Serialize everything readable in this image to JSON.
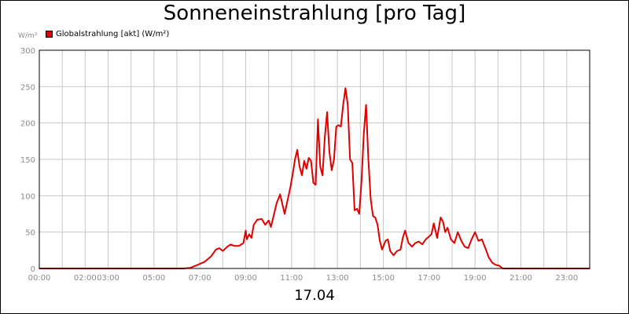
{
  "title": "Sonneneinstrahlung [pro Tag]",
  "y_unit": "W/m²",
  "date_label": "17.04",
  "colors": {
    "series": "#e00000",
    "grid": "#c8c8c8",
    "axis": "#000000",
    "tick_text": "#8a8a8a"
  },
  "chart_data": {
    "type": "line",
    "title": "Sonneneinstrahlung [pro Tag]",
    "xlabel": "17.04",
    "ylabel": "W/m²",
    "ylim": [
      0,
      300
    ],
    "xlim_hours": [
      0,
      24
    ],
    "grid": true,
    "legend_placement": "top-left",
    "y_ticks": [
      "0",
      "50",
      "100",
      "150",
      "200",
      "250",
      "300"
    ],
    "x_ticks": [
      "00:00",
      "02:00",
      "03:00",
      "05:00",
      "07:00",
      "09:00",
      "11:00",
      "13:00",
      "15:00",
      "17:00",
      "19:00",
      "21:00",
      "23:00"
    ],
    "series": [
      {
        "name": "Globalstrahlung [akt] (W/m²)",
        "color": "#e00000",
        "x": [
          0,
          6.3,
          6.6,
          6.9,
          7.2,
          7.5,
          7.7,
          7.85,
          8.0,
          8.2,
          8.35,
          8.5,
          8.7,
          8.9,
          9.0,
          9.05,
          9.15,
          9.25,
          9.35,
          9.5,
          9.7,
          9.85,
          10.0,
          10.1,
          10.2,
          10.35,
          10.5,
          10.6,
          10.7,
          10.8,
          10.95,
          11.05,
          11.15,
          11.25,
          11.35,
          11.45,
          11.55,
          11.65,
          11.75,
          11.85,
          11.95,
          12.05,
          12.15,
          12.25,
          12.35,
          12.45,
          12.55,
          12.65,
          12.75,
          12.85,
          12.95,
          13.05,
          13.15,
          13.25,
          13.35,
          13.45,
          13.55,
          13.65,
          13.75,
          13.85,
          13.95,
          14.05,
          14.15,
          14.25,
          14.35,
          14.45,
          14.55,
          14.65,
          14.75,
          14.85,
          14.95,
          15.1,
          15.2,
          15.3,
          15.45,
          15.6,
          15.75,
          15.85,
          15.95,
          16.1,
          16.25,
          16.4,
          16.55,
          16.7,
          16.85,
          17.0,
          17.1,
          17.2,
          17.35,
          17.5,
          17.6,
          17.7,
          17.8,
          17.95,
          18.1,
          18.25,
          18.4,
          18.55,
          18.7,
          18.85,
          19.0,
          19.15,
          19.3,
          19.45,
          19.6,
          19.75,
          19.9,
          20.05,
          20.2,
          20.4,
          24
        ],
        "values": [
          0,
          0,
          1,
          5,
          9,
          17,
          26,
          28,
          24,
          30,
          33,
          31,
          31,
          35,
          52,
          40,
          47,
          42,
          60,
          67,
          68,
          60,
          66,
          57,
          70,
          90,
          102,
          88,
          75,
          90,
          112,
          130,
          150,
          163,
          140,
          128,
          148,
          137,
          152,
          148,
          118,
          115,
          205,
          140,
          128,
          180,
          215,
          160,
          135,
          150,
          195,
          197,
          195,
          225,
          248,
          225,
          150,
          145,
          80,
          82,
          75,
          120,
          185,
          225,
          150,
          95,
          72,
          70,
          60,
          38,
          26,
          38,
          40,
          24,
          18,
          24,
          26,
          42,
          52,
          35,
          30,
          35,
          37,
          33,
          40,
          44,
          47,
          62,
          42,
          70,
          65,
          50,
          56,
          40,
          35,
          50,
          38,
          30,
          28,
          40,
          50,
          38,
          40,
          28,
          15,
          8,
          5,
          4,
          0,
          0,
          0
        ]
      }
    ]
  }
}
